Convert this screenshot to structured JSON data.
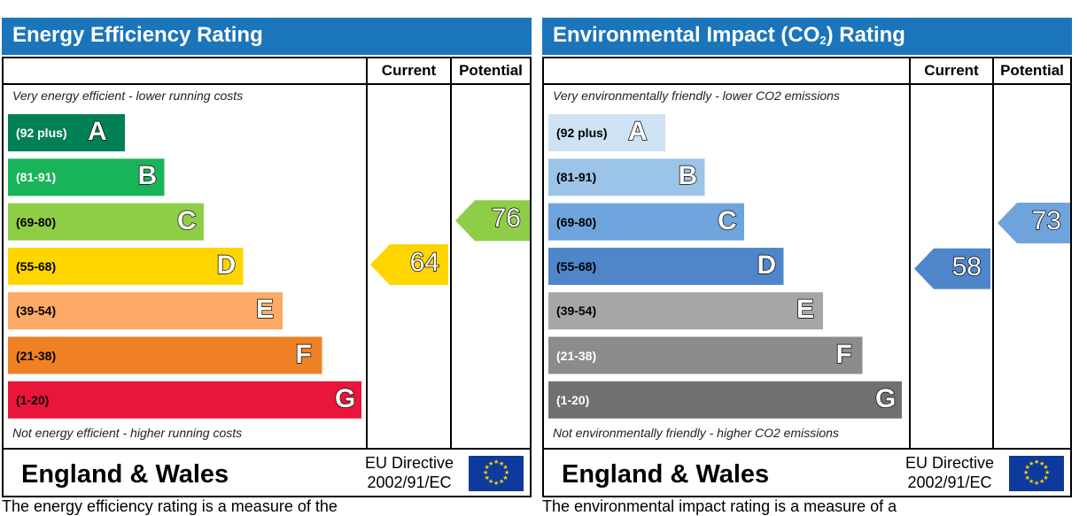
{
  "chart_data": [
    {
      "type": "bar",
      "title": "Energy Efficiency Rating",
      "columns": [
        "Current",
        "Potential"
      ],
      "top_description": "Very energy efficient - lower running costs",
      "bottom_description": "Not energy efficient - higher running costs",
      "categories": [
        "A",
        "B",
        "C",
        "D",
        "E",
        "F",
        "G"
      ],
      "ranges": [
        "(92 plus)",
        "(81-91)",
        "(69-80)",
        "(55-68)",
        "(39-54)",
        "(21-38)",
        "(1-20)"
      ],
      "band_colors": [
        "#008054",
        "#19b459",
        "#8dce46",
        "#ffd500",
        "#fcaa65",
        "#ef8023",
        "#e9153b"
      ],
      "band_text_colors": [
        "#ffffff",
        "#ffffff",
        "#000000",
        "#000000",
        "#000000",
        "#000000",
        "#000000"
      ],
      "current": 64,
      "current_band": "D",
      "current_color": "#ffd500",
      "potential": 76,
      "potential_band": "C",
      "potential_color": "#8dce46",
      "footer": {
        "country": "England & Wales",
        "directive_line1": "EU Directive",
        "directive_line2": "2002/91/EC"
      },
      "bottom_text": "The energy efficiency rating is a measure of the"
    },
    {
      "type": "bar",
      "title_main": "Environmental Impact (CO",
      "title_sub": "2",
      "title_end": ") Rating",
      "columns": [
        "Current",
        "Potential"
      ],
      "top_description": "Very environmentally friendly - lower CO2 emissions",
      "bottom_description": "Not environmentally friendly - higher CO2 emissions",
      "categories": [
        "A",
        "B",
        "C",
        "D",
        "E",
        "F",
        "G"
      ],
      "ranges": [
        "(92 plus)",
        "(81-91)",
        "(69-80)",
        "(55-68)",
        "(39-54)",
        "(21-38)",
        "(1-20)"
      ],
      "band_colors": [
        "#cfe2f3",
        "#9cc3e8",
        "#6fa3dc",
        "#4e86c9",
        "#a6a6a6",
        "#8c8c8c",
        "#707070"
      ],
      "band_text_colors": [
        "#000000",
        "#000000",
        "#000000",
        "#000000",
        "#000000",
        "#ffffff",
        "#ffffff"
      ],
      "current": 58,
      "current_band": "D",
      "current_color": "#4e86c9",
      "potential": 73,
      "potential_band": "C",
      "potential_color": "#6fa3dc",
      "footer": {
        "country": "England & Wales",
        "directive_line1": "EU Directive",
        "directive_line2": "2002/91/EC"
      },
      "bottom_text": "The environmental impact rating is a measure of a"
    }
  ]
}
